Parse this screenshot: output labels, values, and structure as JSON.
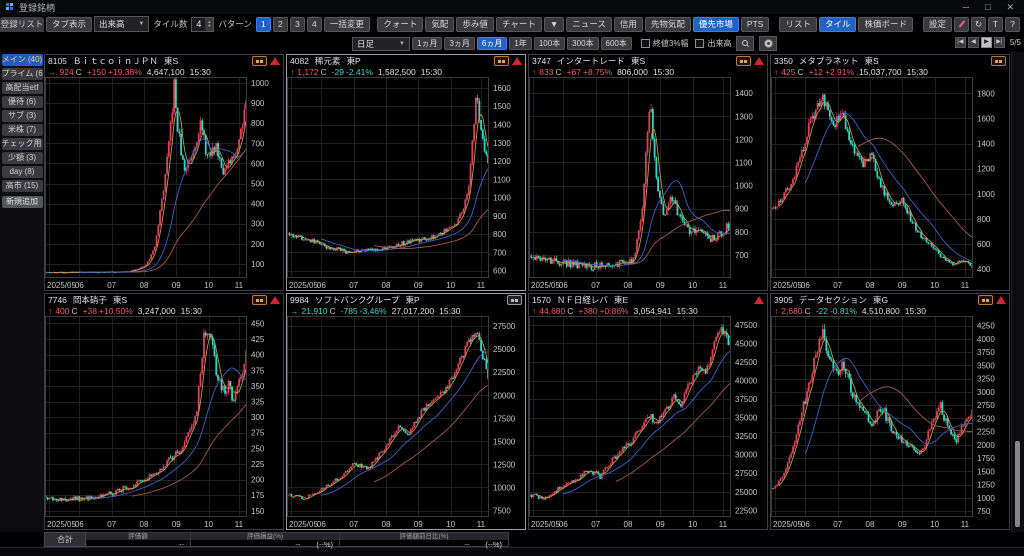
{
  "window": {
    "title": "登録銘柄",
    "minimize": "─",
    "maximize": "□",
    "close": "✕"
  },
  "toolbar": {
    "list_tab": "登録リスト",
    "tab_display": "タブ表示",
    "content_dropdown": "出来高",
    "tile_count_label": "タイル数",
    "tile_count": "4",
    "pattern_label": "パターン",
    "patterns": [
      "1",
      "2",
      "3",
      "4"
    ],
    "pattern_selected": "1",
    "bulk_change": "一括変更",
    "view_buttons": [
      "クォート",
      "気配",
      "歩み値",
      "チャート",
      "▼",
      "ニュース",
      "信用"
    ],
    "market_buttons": [
      {
        "label": "先物気配",
        "active": false
      },
      {
        "label": "優先市場",
        "active": true
      },
      {
        "label": "PTS",
        "active": false
      }
    ],
    "layout_buttons": [
      {
        "label": "リスト",
        "active": false
      },
      {
        "label": "タイル",
        "active": true
      },
      {
        "label": "株価ボード",
        "active": false
      }
    ],
    "settings_button": "設定",
    "tool_icons": [
      {
        "name": "pencil-icon",
        "glyph": ""
      },
      {
        "name": "refresh-icon",
        "glyph": "↻"
      },
      {
        "name": "text-icon",
        "glyph": "T"
      },
      {
        "name": "help-icon",
        "glyph": "?"
      }
    ]
  },
  "chartbar": {
    "timeframe": "日足",
    "ranges": [
      "1ヵ月",
      "3ヵ月",
      "6ヵ月",
      "1年",
      "100本",
      "300本",
      "600本"
    ],
    "range_selected": "6ヵ月",
    "checkboxes": [
      {
        "label": "終値3%幅",
        "checked": false
      },
      {
        "label": "出来高",
        "checked": false
      }
    ],
    "pager_buttons": [
      "|◀",
      "◀",
      "▶",
      "▶|"
    ],
    "pager_active_index": 2,
    "page_indicator": "5/5"
  },
  "sidebar": {
    "items": [
      {
        "label": "メイン (40)",
        "selected": true
      },
      {
        "label": "プライム (6)",
        "selected": false
      },
      {
        "label": "高配当etf",
        "selected": false
      },
      {
        "label": "優待 (6)",
        "selected": false
      },
      {
        "label": "サブ (3)",
        "selected": false
      },
      {
        "label": "米株 (7)",
        "selected": false
      },
      {
        "label": "チェック用 (",
        "selected": false
      },
      {
        "label": "少額 (3)",
        "selected": false
      },
      {
        "label": "day (8)",
        "selected": false
      },
      {
        "label": "高市 (15)",
        "selected": false
      }
    ],
    "add_button": "新規追加"
  },
  "summary": {
    "total_label": "合計",
    "columns": [
      {
        "header": "評価額",
        "values": [
          "--"
        ]
      },
      {
        "header": "評価損益(%)",
        "values": [
          "--",
          "(--%)"
        ]
      },
      {
        "header": "評価額前日比(%)",
        "values": [
          "--",
          "(--%)"
        ]
      }
    ]
  },
  "price_close_suffix": "C",
  "x_axis": {
    "labels": [
      "2025/05",
      "06",
      "07",
      "08",
      "09",
      "10",
      "11"
    ],
    "fractions": [
      0.02,
      0.17,
      0.33,
      0.49,
      0.65,
      0.81,
      0.96
    ]
  },
  "colors": {
    "up": "#f4566b",
    "down": "#38d9c6",
    "candle_up": "#e04058",
    "candle_down": "#2fd8c4",
    "ma_short": "#b3a04a",
    "ma_mid": "#3e62c8",
    "ma_long": "#a55a4a",
    "accent": "#2163c4",
    "grid": "#202020",
    "axis_text": "#c6c6c6",
    "panel_border": "#3e3e46"
  },
  "panels": [
    {
      "code": "8105",
      "name": "ＢｉｔｃｏｉｎＪＰＮ",
      "market": "東S",
      "arrow": "→",
      "dir": "up",
      "price": "924",
      "change": "+150",
      "change_pct": "+19.38%",
      "chg_dir": "up",
      "volume": "4,647,100",
      "time": "15:30",
      "badge": "orange",
      "alarm": true,
      "highlighted": false,
      "seed": 11,
      "vol": 0.05,
      "ylim": [
        30,
        1030
      ],
      "y_ticks": [
        1000,
        900,
        800,
        700,
        600,
        500,
        400,
        300,
        200,
        100
      ],
      "keypoints": [
        [
          0,
          58
        ],
        [
          0.38,
          60
        ],
        [
          0.45,
          70
        ],
        [
          0.5,
          95
        ],
        [
          0.54,
          170
        ],
        [
          0.58,
          420
        ],
        [
          0.61,
          640
        ],
        [
          0.64,
          980
        ],
        [
          0.66,
          760
        ],
        [
          0.69,
          560
        ],
        [
          0.73,
          650
        ],
        [
          0.77,
          800
        ],
        [
          0.81,
          620
        ],
        [
          0.85,
          690
        ],
        [
          0.89,
          560
        ],
        [
          0.93,
          610
        ],
        [
          0.96,
          700
        ],
        [
          1,
          924
        ]
      ]
    },
    {
      "code": "4082",
      "name": "稀元素",
      "market": "東P",
      "arrow": "↑",
      "dir": "up",
      "price": "1,172",
      "change": "-29",
      "change_pct": "-2.41%",
      "chg_dir": "dn",
      "volume": "1,582,500",
      "time": "15:30",
      "badge": "orange",
      "alarm": true,
      "highlighted": true,
      "seed": 22,
      "vol": 0.018,
      "ylim": [
        560,
        1660
      ],
      "y_ticks": [
        1600,
        1500,
        1400,
        1300,
        1200,
        1100,
        1000,
        900,
        800,
        700,
        600
      ],
      "keypoints": [
        [
          0,
          800
        ],
        [
          0.1,
          775
        ],
        [
          0.2,
          730
        ],
        [
          0.3,
          700
        ],
        [
          0.45,
          720
        ],
        [
          0.6,
          755
        ],
        [
          0.75,
          795
        ],
        [
          0.85,
          870
        ],
        [
          0.9,
          1020
        ],
        [
          0.94,
          1560
        ],
        [
          0.97,
          1340
        ],
        [
          1,
          1172
        ]
      ]
    },
    {
      "code": "3747",
      "name": "インタートレード",
      "market": "東S",
      "arrow": "↑",
      "dir": "up",
      "price": "833",
      "change": "+67",
      "change_pct": "+8.75%",
      "chg_dir": "up",
      "volume": "806,000",
      "time": "15:30",
      "badge": "orange",
      "alarm": true,
      "highlighted": false,
      "seed": 33,
      "vol": 0.025,
      "ylim": [
        600,
        1470
      ],
      "y_ticks": [
        1400,
        1300,
        1200,
        1100,
        1000,
        900,
        800,
        700
      ],
      "keypoints": [
        [
          0,
          690
        ],
        [
          0.15,
          668
        ],
        [
          0.3,
          650
        ],
        [
          0.45,
          662
        ],
        [
          0.52,
          680
        ],
        [
          0.56,
          880
        ],
        [
          0.6,
          1390
        ],
        [
          0.63,
          1020
        ],
        [
          0.67,
          860
        ],
        [
          0.71,
          950
        ],
        [
          0.75,
          865
        ],
        [
          0.8,
          785
        ],
        [
          0.85,
          820
        ],
        [
          0.9,
          762
        ],
        [
          0.95,
          788
        ],
        [
          1,
          833
        ]
      ]
    },
    {
      "code": "3350",
      "name": "メタプラネット",
      "market": "東S",
      "arrow": "↑",
      "dir": "up",
      "price": "425",
      "change": "+12",
      "change_pct": "+2.91%",
      "chg_dir": "up",
      "volume": "15,037,700",
      "time": "15:30",
      "badge": "orange",
      "alarm": false,
      "highlighted": false,
      "seed": 44,
      "vol": 0.032,
      "ylim": [
        330,
        1930
      ],
      "y_ticks": [
        1800,
        1600,
        1400,
        1200,
        1000,
        800,
        600,
        400
      ],
      "keypoints": [
        [
          0,
          870
        ],
        [
          0.05,
          950
        ],
        [
          0.1,
          1100
        ],
        [
          0.15,
          1340
        ],
        [
          0.2,
          1600
        ],
        [
          0.25,
          1780
        ],
        [
          0.3,
          1540
        ],
        [
          0.35,
          1640
        ],
        [
          0.4,
          1400
        ],
        [
          0.45,
          1240
        ],
        [
          0.5,
          1300
        ],
        [
          0.55,
          1040
        ],
        [
          0.6,
          900
        ],
        [
          0.65,
          950
        ],
        [
          0.7,
          780
        ],
        [
          0.75,
          650
        ],
        [
          0.8,
          580
        ],
        [
          0.85,
          500
        ],
        [
          0.9,
          432
        ],
        [
          0.95,
          465
        ],
        [
          1,
          425
        ]
      ]
    },
    {
      "code": "7746",
      "name": "岡本硝子",
      "market": "東S",
      "arrow": "↑",
      "dir": "up",
      "price": "400",
      "change": "+38",
      "change_pct": "+10.50%",
      "chg_dir": "up",
      "volume": "3,247,000",
      "time": "15:30",
      "badge": "orange",
      "alarm": true,
      "highlighted": false,
      "seed": 55,
      "vol": 0.025,
      "ylim": [
        140,
        462
      ],
      "y_ticks": [
        450,
        425,
        400,
        375,
        350,
        325,
        300,
        275,
        250,
        225,
        200,
        175,
        150
      ],
      "keypoints": [
        [
          0,
          172
        ],
        [
          0.1,
          168
        ],
        [
          0.2,
          170
        ],
        [
          0.3,
          176
        ],
        [
          0.4,
          186
        ],
        [
          0.5,
          200
        ],
        [
          0.6,
          226
        ],
        [
          0.65,
          240
        ],
        [
          0.7,
          262
        ],
        [
          0.75,
          300
        ],
        [
          0.79,
          430
        ],
        [
          0.82,
          445
        ],
        [
          0.85,
          372
        ],
        [
          0.88,
          340
        ],
        [
          0.91,
          352
        ],
        [
          0.94,
          325
        ],
        [
          0.97,
          362
        ],
        [
          1,
          400
        ]
      ]
    },
    {
      "code": "9984",
      "name": "ソフトバンクグループ",
      "market": "東P",
      "arrow": "→",
      "dir": "dn",
      "price": "21,910",
      "change": "-785",
      "change_pct": "-3.46%",
      "chg_dir": "dn",
      "volume": "27,017,200",
      "time": "15:30",
      "badge": "gray",
      "alarm": false,
      "highlighted": true,
      "seed": 66,
      "vol": 0.018,
      "ylim": [
        6800,
        28600
      ],
      "y_ticks": [
        27500,
        25000,
        22500,
        20000,
        17500,
        15000,
        12500,
        10000,
        7500
      ],
      "keypoints": [
        [
          0,
          9300
        ],
        [
          0.08,
          8800
        ],
        [
          0.15,
          9500
        ],
        [
          0.25,
          11000
        ],
        [
          0.33,
          12600
        ],
        [
          0.4,
          12000
        ],
        [
          0.48,
          14200
        ],
        [
          0.55,
          16600
        ],
        [
          0.6,
          15800
        ],
        [
          0.68,
          18600
        ],
        [
          0.75,
          19600
        ],
        [
          0.8,
          21200
        ],
        [
          0.85,
          23200
        ],
        [
          0.9,
          25600
        ],
        [
          0.94,
          27000
        ],
        [
          0.97,
          24600
        ],
        [
          1,
          21910
        ]
      ]
    },
    {
      "code": "1570",
      "name": "ＮＦ日経レバ",
      "market": "東E",
      "arrow": "↑",
      "dir": "up",
      "price": "44,680",
      "change": "+380",
      "change_pct": "+0.86%",
      "chg_dir": "up",
      "volume": "3,054,941",
      "time": "15:30",
      "badge": null,
      "alarm": true,
      "highlighted": false,
      "seed": 77,
      "vol": 0.014,
      "ylim": [
        21600,
        48700
      ],
      "y_ticks": [
        47500,
        45000,
        42500,
        40000,
        37500,
        35000,
        32500,
        30000,
        27500,
        25000,
        22500
      ],
      "keypoints": [
        [
          0,
          24600
        ],
        [
          0.08,
          24100
        ],
        [
          0.15,
          25600
        ],
        [
          0.22,
          26600
        ],
        [
          0.3,
          27900
        ],
        [
          0.35,
          27100
        ],
        [
          0.42,
          29600
        ],
        [
          0.5,
          31600
        ],
        [
          0.55,
          33600
        ],
        [
          0.6,
          35600
        ],
        [
          0.63,
          33900
        ],
        [
          0.68,
          36100
        ],
        [
          0.72,
          37900
        ],
        [
          0.75,
          36600
        ],
        [
          0.8,
          39600
        ],
        [
          0.85,
          42100
        ],
        [
          0.88,
          41100
        ],
        [
          0.92,
          44600
        ],
        [
          0.95,
          47300
        ],
        [
          0.97,
          46100
        ],
        [
          1,
          44680
        ]
      ]
    },
    {
      "code": "3905",
      "name": "データセクション",
      "market": "東G",
      "arrow": "↑",
      "dir": "up",
      "price": "2,680",
      "change": "-22",
      "change_pct": "-0.81%",
      "chg_dir": "dn",
      "volume": "4,510,800",
      "time": "15:30",
      "badge": "orange",
      "alarm": true,
      "highlighted": false,
      "seed": 88,
      "vol": 0.035,
      "ylim": [
        640,
        4430
      ],
      "y_ticks": [
        4250,
        4000,
        3750,
        3500,
        3250,
        3000,
        2750,
        2500,
        2250,
        2000,
        1750,
        1500,
        1250,
        1000,
        750
      ],
      "keypoints": [
        [
          0,
          1150
        ],
        [
          0.05,
          1400
        ],
        [
          0.1,
          1900
        ],
        [
          0.15,
          2600
        ],
        [
          0.2,
          3400
        ],
        [
          0.25,
          4100
        ],
        [
          0.28,
          3800
        ],
        [
          0.32,
          3300
        ],
        [
          0.36,
          3520
        ],
        [
          0.4,
          3000
        ],
        [
          0.45,
          2620
        ],
        [
          0.5,
          2400
        ],
        [
          0.55,
          2700
        ],
        [
          0.6,
          2300
        ],
        [
          0.65,
          2100
        ],
        [
          0.7,
          1950
        ],
        [
          0.75,
          1860
        ],
        [
          0.8,
          2420
        ],
        [
          0.84,
          2760
        ],
        [
          0.88,
          2320
        ],
        [
          0.92,
          2060
        ],
        [
          0.96,
          2420
        ],
        [
          1,
          2680
        ]
      ]
    }
  ]
}
